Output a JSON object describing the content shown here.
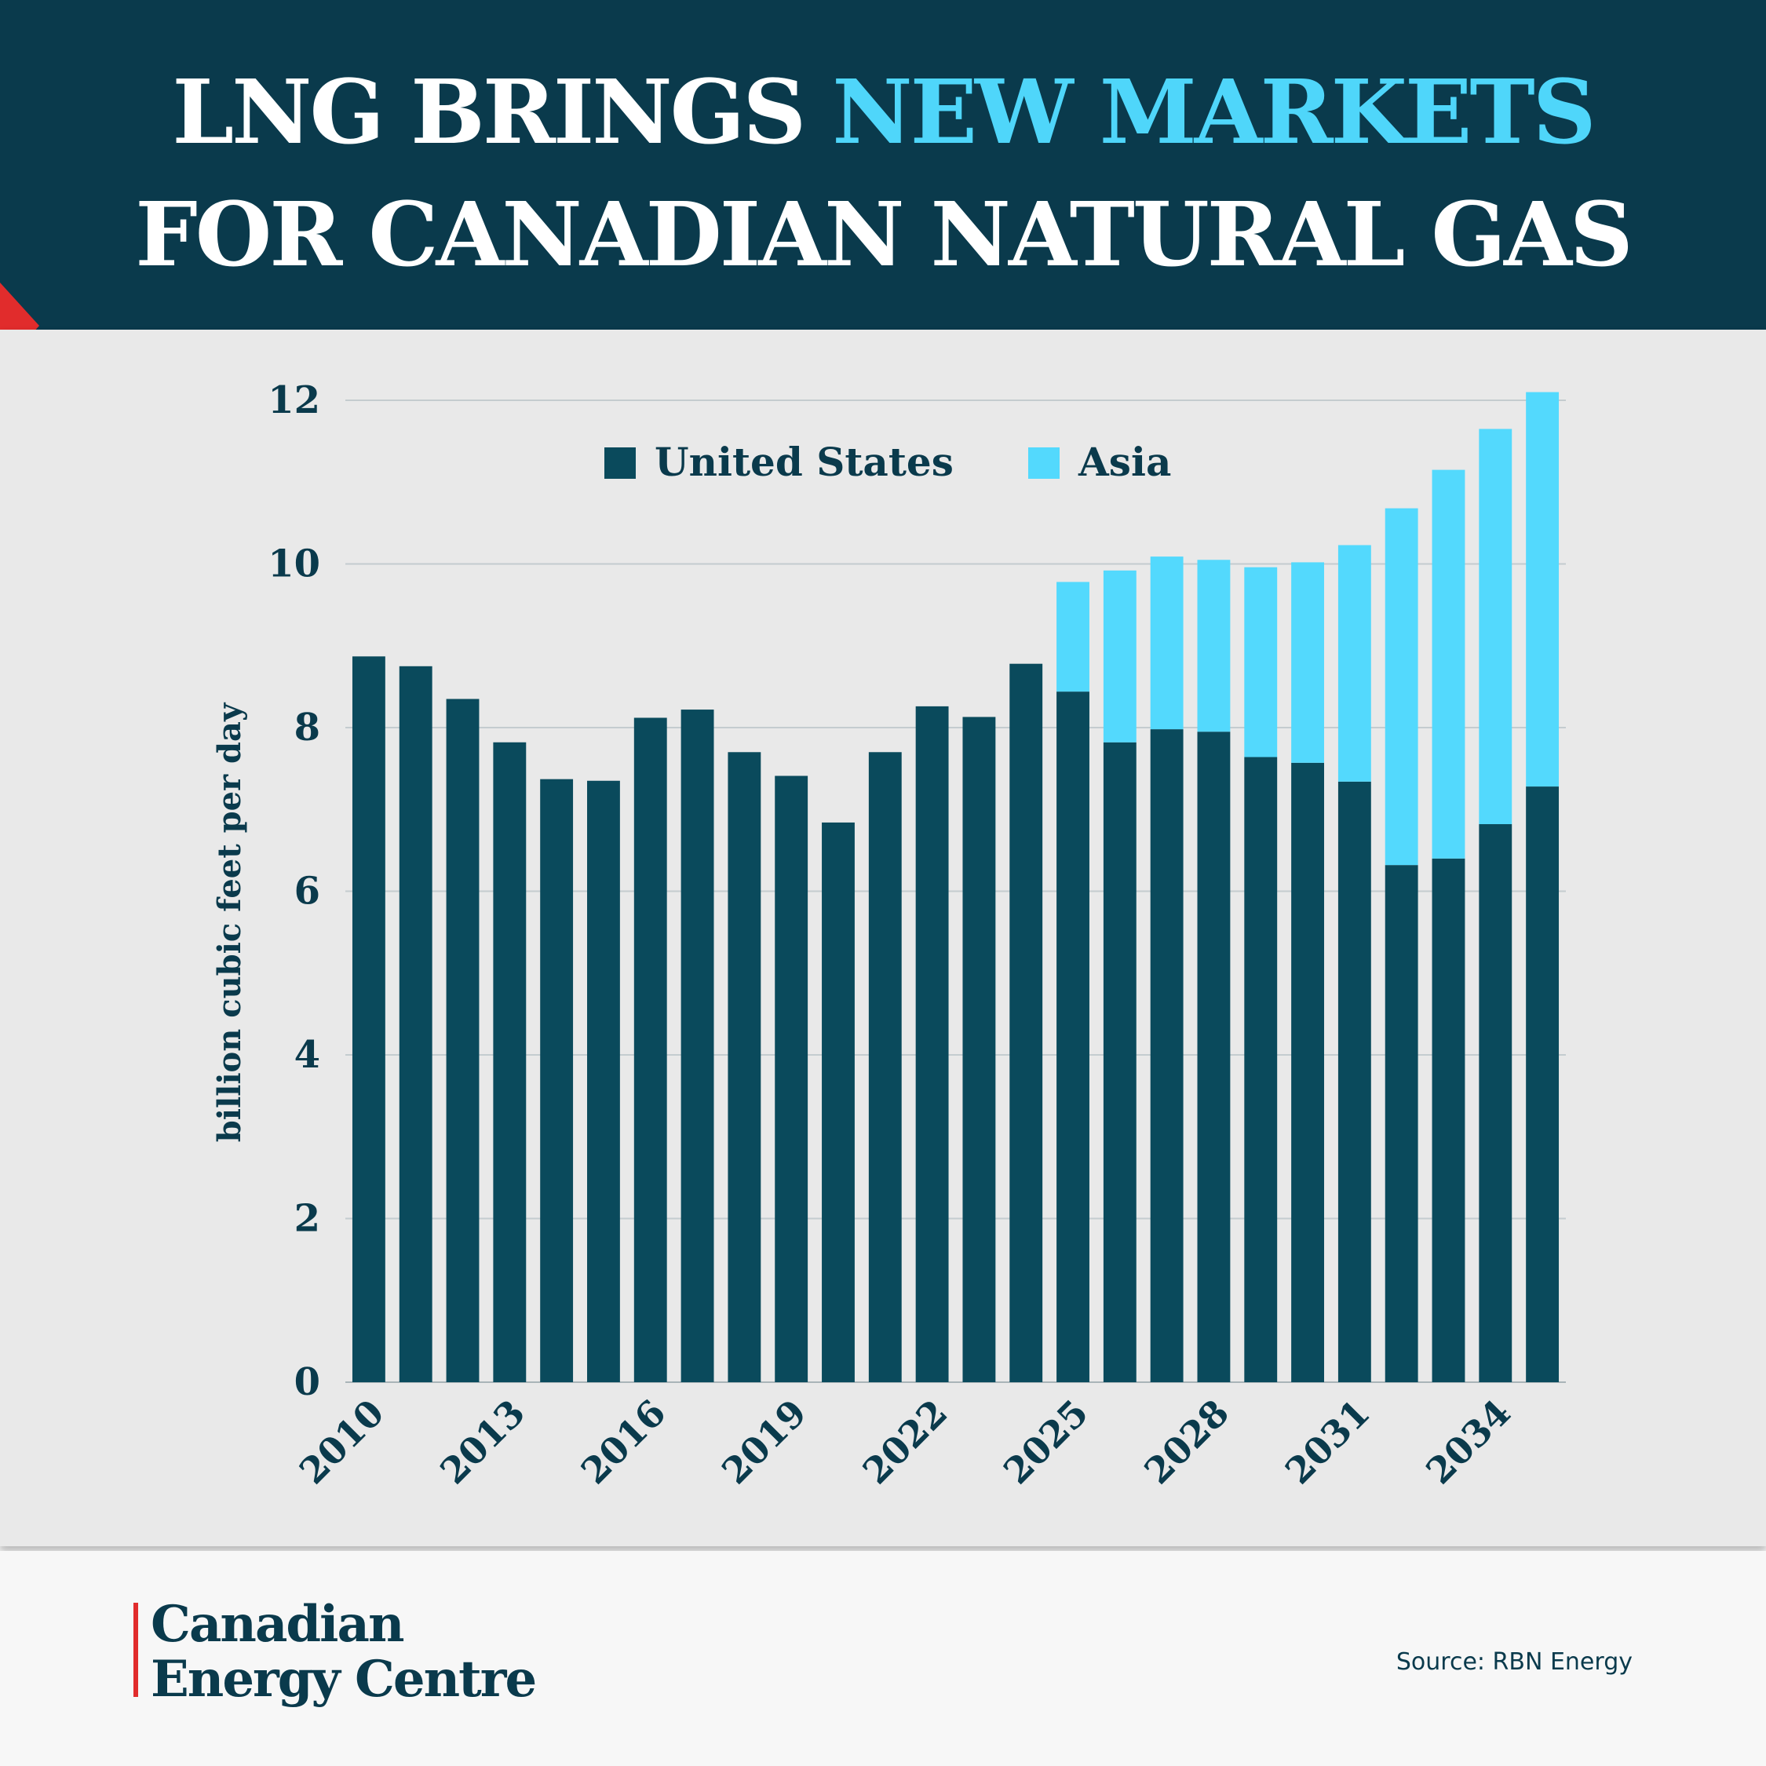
{
  "header": {
    "title_part1": "LNG BRINGS ",
    "title_part2": "NEW MARKETS",
    "title_line2": "FOR CANADIAN NATURAL GAS",
    "colors": {
      "background": "#0a3a4c",
      "highlight": "#4fd6fa",
      "accent": "#e12c2c"
    }
  },
  "chart_data": {
    "type": "bar",
    "stacked": true,
    "categories": [
      "2010",
      "2011",
      "2012",
      "2013",
      "2014",
      "2015",
      "2016",
      "2017",
      "2018",
      "2019",
      "2020",
      "2021",
      "2022",
      "2023",
      "2024",
      "2025",
      "2026",
      "2027",
      "2028",
      "2029",
      "2030",
      "2031",
      "2032",
      "2033",
      "2034",
      "2035"
    ],
    "tick_labels": [
      "2010",
      "2013",
      "2016",
      "2019",
      "2022",
      "2025",
      "2028",
      "2031",
      "2034"
    ],
    "series": [
      {
        "name": "United States",
        "color": "#0a4a5c",
        "values": [
          8.87,
          8.75,
          8.35,
          7.82,
          7.37,
          7.35,
          8.12,
          8.22,
          7.7,
          7.41,
          6.84,
          7.7,
          8.26,
          8.13,
          8.78,
          8.44,
          7.82,
          7.98,
          7.95,
          7.64,
          7.57,
          7.34,
          6.32,
          6.4,
          6.82,
          7.28
        ]
      },
      {
        "name": "Asia",
        "color": "#53d9fd",
        "values": [
          0,
          0,
          0,
          0,
          0,
          0,
          0,
          0,
          0,
          0,
          0,
          0,
          0,
          0,
          0,
          1.34,
          2.1,
          2.11,
          2.1,
          2.32,
          2.45,
          2.89,
          4.36,
          4.75,
          4.83,
          4.82
        ]
      }
    ],
    "xlabel": "",
    "ylabel": "billion cubic feet per day",
    "ylim": [
      0,
      12
    ],
    "yticks": [
      0,
      2,
      4,
      6,
      8,
      10,
      12
    ],
    "grid": true,
    "legend": "top-center"
  },
  "footer": {
    "logo_line1": "Canadian",
    "logo_line2": "Energy Centre",
    "source": "Source: RBN Energy"
  }
}
